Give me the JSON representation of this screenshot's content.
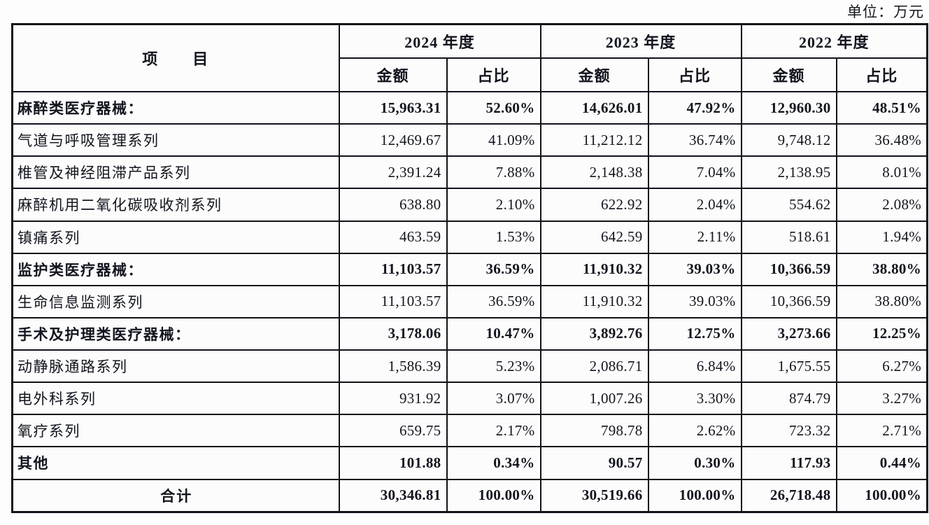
{
  "page": {
    "unit_label": "单位：万元"
  },
  "table": {
    "item_header": "项　　目",
    "year_groups": [
      {
        "label": "2024 年度"
      },
      {
        "label": "2023 年度"
      },
      {
        "label": "2022 年度"
      }
    ],
    "sub_headers": {
      "amount": "金额",
      "ratio": "占比"
    },
    "rows": [
      {
        "label": "麻醉类医疗器械：",
        "bold": true,
        "total": false,
        "values": [
          "15,963.31",
          "52.60%",
          "14,626.01",
          "47.92%",
          "12,960.30",
          "48.51%"
        ]
      },
      {
        "label": "气道与呼吸管理系列",
        "bold": false,
        "total": false,
        "values": [
          "12,469.67",
          "41.09%",
          "11,212.12",
          "36.74%",
          "9,748.12",
          "36.48%"
        ]
      },
      {
        "label": "椎管及神经阻滞产品系列",
        "bold": false,
        "total": false,
        "values": [
          "2,391.24",
          "7.88%",
          "2,148.38",
          "7.04%",
          "2,138.95",
          "8.01%"
        ]
      },
      {
        "label": "麻醉机用二氧化碳吸收剂系列",
        "bold": false,
        "total": false,
        "values": [
          "638.80",
          "2.10%",
          "622.92",
          "2.04%",
          "554.62",
          "2.08%"
        ]
      },
      {
        "label": "镇痛系列",
        "bold": false,
        "total": false,
        "values": [
          "463.59",
          "1.53%",
          "642.59",
          "2.11%",
          "518.61",
          "1.94%"
        ]
      },
      {
        "label": "监护类医疗器械：",
        "bold": true,
        "total": false,
        "values": [
          "11,103.57",
          "36.59%",
          "11,910.32",
          "39.03%",
          "10,366.59",
          "38.80%"
        ]
      },
      {
        "label": "生命信息监测系列",
        "bold": false,
        "total": false,
        "values": [
          "11,103.57",
          "36.59%",
          "11,910.32",
          "39.03%",
          "10,366.59",
          "38.80%"
        ]
      },
      {
        "label": "手术及护理类医疗器械：",
        "bold": true,
        "total": false,
        "values": [
          "3,178.06",
          "10.47%",
          "3,892.76",
          "12.75%",
          "3,273.66",
          "12.25%"
        ]
      },
      {
        "label": "动静脉通路系列",
        "bold": false,
        "total": false,
        "values": [
          "1,586.39",
          "5.23%",
          "2,086.71",
          "6.84%",
          "1,675.55",
          "6.27%"
        ]
      },
      {
        "label": "电外科系列",
        "bold": false,
        "total": false,
        "values": [
          "931.92",
          "3.07%",
          "1,007.26",
          "3.30%",
          "874.79",
          "3.27%"
        ]
      },
      {
        "label": "氧疗系列",
        "bold": false,
        "total": false,
        "values": [
          "659.75",
          "2.17%",
          "798.78",
          "2.62%",
          "723.32",
          "2.71%"
        ]
      },
      {
        "label": "其他",
        "bold": true,
        "total": false,
        "values": [
          "101.88",
          "0.34%",
          "90.57",
          "0.30%",
          "117.93",
          "0.44%"
        ]
      },
      {
        "label": "合计",
        "bold": true,
        "total": true,
        "values": [
          "30,346.81",
          "100.00%",
          "30,519.66",
          "100.00%",
          "26,718.48",
          "100.00%"
        ]
      }
    ]
  }
}
